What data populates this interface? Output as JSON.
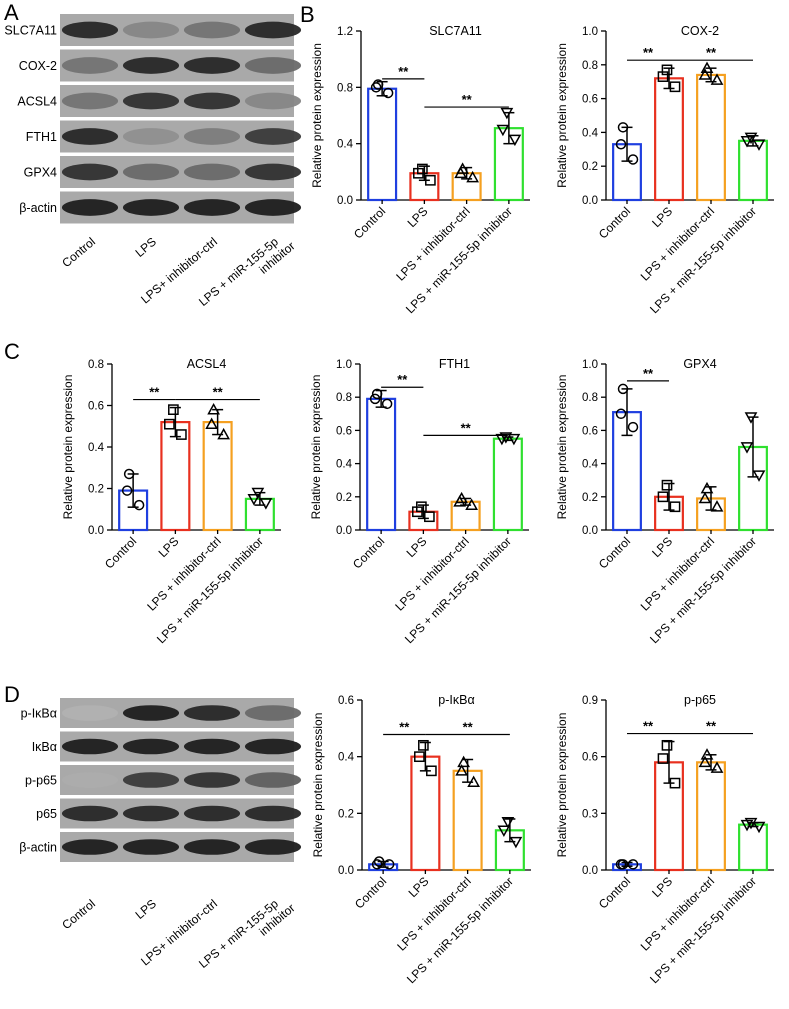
{
  "panels": [
    "A",
    "B",
    "C",
    "D"
  ],
  "groups": [
    "Control",
    "LPS",
    "LPS + inhibitor-ctrl",
    "LPS + miR-155-5p inhibitor"
  ],
  "colors": [
    "#1f3fe0",
    "#e8301f",
    "#f5a020",
    "#2fe02f"
  ],
  "blot_A": {
    "rows": [
      "SLC7A11",
      "COX-2",
      "ACSL4",
      "FTH1",
      "GPX4",
      "β-actin"
    ],
    "lanes": [
      "Control",
      "LPS",
      "LPS+ inhibitor-ctrl",
      "LPS + miR-155-5p inhibitor"
    ]
  },
  "blot_D": {
    "rows": [
      "p-IκBα",
      "IκBα",
      "p-p65",
      "p65",
      "β-actin"
    ],
    "lanes": [
      "Control",
      "LPS",
      "LPS+ inhibitor-ctrl",
      "LPS + miR-155-5p inhibitor"
    ]
  },
  "ylabel": "Relative protein expression",
  "chart_data": [
    {
      "type": "bar",
      "title": "SLC7A11",
      "ylabel": "Relative protein expression",
      "ylim": [
        0,
        1.2
      ],
      "ticks": [
        0.0,
        0.4,
        0.8,
        1.2
      ],
      "categories": [
        "Control",
        "LPS",
        "LPS + inhibitor-ctrl",
        "LPS + miR-155-5p inhibitor"
      ],
      "values": [
        0.79,
        0.19,
        0.19,
        0.51
      ],
      "err": [
        0.05,
        0.05,
        0.04,
        0.11
      ],
      "points": [
        [
          0.82,
          0.8,
          0.76
        ],
        [
          0.22,
          0.19,
          0.14
        ],
        [
          0.22,
          0.19,
          0.16
        ],
        [
          0.62,
          0.5,
          0.43
        ]
      ],
      "sig": [
        {
          "from": 0,
          "to": 1,
          "label": "**"
        },
        {
          "from": 1,
          "to": 3,
          "label": "**"
        }
      ]
    },
    {
      "type": "bar",
      "title": "COX-2",
      "ylabel": "Relative protein expression",
      "ylim": [
        0,
        1.0
      ],
      "ticks": [
        0.0,
        0.2,
        0.4,
        0.6,
        0.8,
        1.0
      ],
      "categories": [
        "Control",
        "LPS",
        "LPS + inhibitor-ctrl",
        "LPS + miR-155-5p inhibitor"
      ],
      "values": [
        0.33,
        0.72,
        0.74,
        0.35
      ],
      "err": [
        0.1,
        0.06,
        0.04,
        0.03
      ],
      "points": [
        [
          0.43,
          0.33,
          0.24
        ],
        [
          0.77,
          0.73,
          0.67
        ],
        [
          0.78,
          0.74,
          0.71
        ],
        [
          0.37,
          0.35,
          0.33
        ]
      ],
      "sig": [
        {
          "from": 0,
          "to": 1,
          "label": "**"
        },
        {
          "from": 1,
          "to": 3,
          "label": "**"
        }
      ]
    },
    {
      "type": "bar",
      "title": "ACSL4",
      "ylabel": "Relative protein expression",
      "ylim": [
        0,
        0.8
      ],
      "ticks": [
        0.0,
        0.2,
        0.4,
        0.6,
        0.8
      ],
      "categories": [
        "Control",
        "LPS",
        "LPS + inhibitor-ctrl",
        "LPS + miR-155-5p inhibitor"
      ],
      "values": [
        0.19,
        0.52,
        0.52,
        0.15
      ],
      "err": [
        0.08,
        0.07,
        0.06,
        0.03
      ],
      "points": [
        [
          0.27,
          0.19,
          0.12
        ],
        [
          0.58,
          0.51,
          0.46
        ],
        [
          0.58,
          0.51,
          0.46
        ],
        [
          0.18,
          0.15,
          0.13
        ]
      ],
      "sig": [
        {
          "from": 0,
          "to": 1,
          "label": "**"
        },
        {
          "from": 1,
          "to": 3,
          "label": "**"
        }
      ]
    },
    {
      "type": "bar",
      "title": "FTH1",
      "ylabel": "Relative protein expression",
      "ylim": [
        0,
        1.0
      ],
      "ticks": [
        0.0,
        0.2,
        0.4,
        0.6,
        0.8,
        1.0
      ],
      "categories": [
        "Control",
        "LPS",
        "LPS + inhibitor-ctrl",
        "LPS + miR-155-5p inhibitor"
      ],
      "values": [
        0.79,
        0.11,
        0.17,
        0.55
      ],
      "err": [
        0.05,
        0.04,
        0.02,
        0.01
      ],
      "points": [
        [
          0.82,
          0.79,
          0.76
        ],
        [
          0.14,
          0.11,
          0.08
        ],
        [
          0.19,
          0.17,
          0.15
        ],
        [
          0.56,
          0.55,
          0.55
        ]
      ],
      "sig": [
        {
          "from": 0,
          "to": 1,
          "label": "**"
        },
        {
          "from": 1,
          "to": 3,
          "label": "**"
        }
      ]
    },
    {
      "type": "bar",
      "title": "GPX4",
      "ylabel": "Relative protein expression",
      "ylim": [
        0,
        1.0
      ],
      "ticks": [
        0.0,
        0.2,
        0.4,
        0.6,
        0.8,
        1.0
      ],
      "categories": [
        "Control",
        "LPS",
        "LPS + inhibitor-ctrl",
        "LPS + miR-155-5p inhibitor"
      ],
      "values": [
        0.71,
        0.2,
        0.19,
        0.5
      ],
      "err": [
        0.14,
        0.08,
        0.07,
        0.18
      ],
      "points": [
        [
          0.85,
          0.7,
          0.62
        ],
        [
          0.27,
          0.2,
          0.14
        ],
        [
          0.25,
          0.19,
          0.14
        ],
        [
          0.68,
          0.5,
          0.33
        ]
      ],
      "sig": [
        {
          "from": 0,
          "to": 1,
          "label": "**"
        }
      ]
    },
    {
      "type": "bar",
      "title": "p-IκBα",
      "ylabel": "Relative protein expression",
      "ylim": [
        0,
        0.6
      ],
      "ticks": [
        0.0,
        0.2,
        0.4,
        0.6
      ],
      "categories": [
        "Control",
        "LPS",
        "LPS + inhibitor-ctrl",
        "LPS + miR-155-5p inhibitor"
      ],
      "values": [
        0.02,
        0.4,
        0.35,
        0.14
      ],
      "err": [
        0.01,
        0.05,
        0.04,
        0.04
      ],
      "points": [
        [
          0.03,
          0.02,
          0.02
        ],
        [
          0.44,
          0.4,
          0.35
        ],
        [
          0.38,
          0.35,
          0.31
        ],
        [
          0.17,
          0.14,
          0.1
        ]
      ],
      "sig": [
        {
          "from": 0,
          "to": 1,
          "label": "**"
        },
        {
          "from": 1,
          "to": 3,
          "label": "**"
        }
      ]
    },
    {
      "type": "bar",
      "title": "p-p65",
      "ylabel": "Relative protein expression",
      "ylim": [
        0,
        0.9
      ],
      "ticks": [
        0.0,
        0.3,
        0.6,
        0.9
      ],
      "categories": [
        "Control",
        "LPS",
        "LPS + inhibitor-ctrl",
        "LPS + miR-155-5p inhibitor"
      ],
      "values": [
        0.03,
        0.57,
        0.57,
        0.24
      ],
      "err": [
        0.01,
        0.11,
        0.04,
        0.01
      ],
      "points": [
        [
          0.03,
          0.03,
          0.03
        ],
        [
          0.66,
          0.59,
          0.46
        ],
        [
          0.61,
          0.57,
          0.54
        ],
        [
          0.25,
          0.24,
          0.23
        ]
      ],
      "sig": [
        {
          "from": 0,
          "to": 1,
          "label": "**"
        },
        {
          "from": 1,
          "to": 3,
          "label": "**"
        }
      ]
    }
  ]
}
